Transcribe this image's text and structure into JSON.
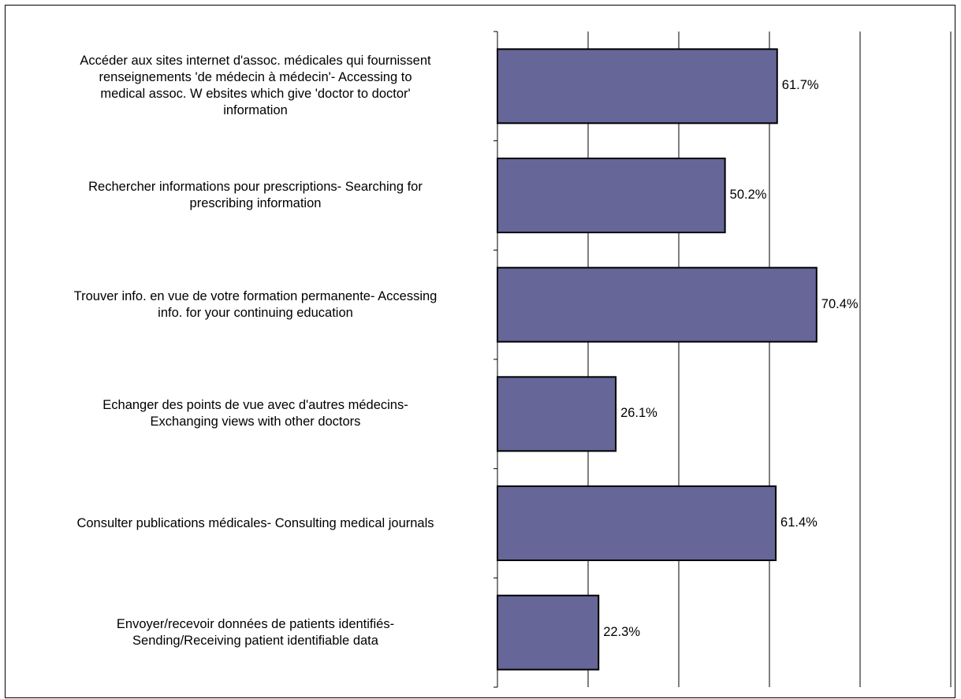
{
  "chart_data": {
    "type": "bar",
    "orientation": "horizontal",
    "categories": [
      "Accéder aux sites internet d'assoc. médicales qui fournissent\nrenseignements 'de médecin à médecin'-    Accessing to\nmedical assoc. W ebsites which give 'doctor to doctor'\ninformation",
      "Rechercher informations pour prescriptions- Searching for\nprescribing information",
      "Trouver info. en vue de votre formation permanente- Accessing\ninfo. for your continuing education",
      "Echanger des points de vue avec d'autres médecins-\nExchanging views with other doctors",
      "Consulter publications médicales- Consulting medical journals",
      "Envoyer/recevoir données de patients identifiés-\nSending/Receiving patient identifiable data"
    ],
    "values": [
      61.7,
      50.2,
      70.4,
      26.1,
      61.4,
      22.3
    ],
    "value_labels": [
      "61.7%",
      "50.2%",
      "70.4%",
      "26.1%",
      "61.4%",
      "22.3%"
    ],
    "xlim": [
      0,
      100
    ],
    "x_gridlines": [
      20,
      40,
      60,
      80,
      100
    ],
    "grid": true,
    "legend": false,
    "bar_color": "#666699",
    "bar_edge_color": "#000000",
    "title": "",
    "xlabel": "",
    "ylabel": ""
  }
}
